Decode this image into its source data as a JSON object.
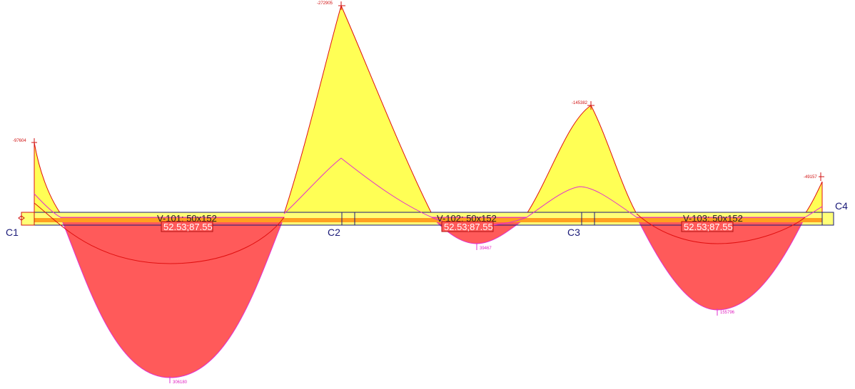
{
  "supports": [
    {
      "label": "C1"
    },
    {
      "label": "C2"
    },
    {
      "label": "C3"
    },
    {
      "label": "C4"
    }
  ],
  "beams": [
    {
      "label": "V-101: 50x152",
      "rebar": "52.53;87.55"
    },
    {
      "label": "V-102: 50x152",
      "rebar": "52.53;87.55"
    },
    {
      "label": "V-103: 50x152",
      "rebar": "52.53;87.55"
    }
  ],
  "peaks": {
    "c1": "-97604",
    "c2": "-272905",
    "c3": "-145382",
    "c4": "-49157",
    "span1": "306180",
    "span2": "39467",
    "span3": "155796"
  },
  "colors": {
    "negative_fill": "#ffff55",
    "positive_fill": "#ff5a5a",
    "moment_line": "#e01010",
    "envelope_line": "#e030d0",
    "beam_outline": "#1a1a78"
  }
}
